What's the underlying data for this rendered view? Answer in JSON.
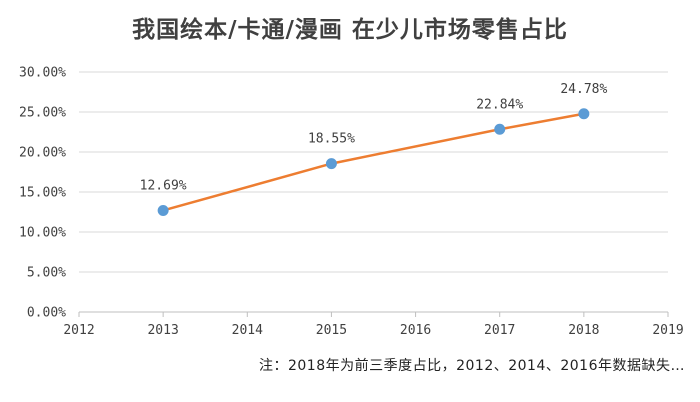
{
  "colors": {
    "line": "#ed7d31",
    "marker": "#5b9bd5",
    "grid": "#d9d9d9",
    "axis": "#bfbfbf",
    "text": "#404040"
  },
  "chart_data": {
    "type": "line",
    "title": "我国绘本/卡通/漫画 在少儿市场零售占比",
    "xlabel": "",
    "ylabel": "",
    "x_ticks": [
      "2012",
      "2013",
      "2014",
      "2015",
      "2016",
      "2017",
      "2018",
      "2019"
    ],
    "y_ticks": [
      "0.00%",
      "5.00%",
      "10.00%",
      "15.00%",
      "20.00%",
      "25.00%",
      "30.00%"
    ],
    "xlim": [
      2012,
      2019
    ],
    "ylim": [
      0,
      30
    ],
    "grid": true,
    "legend": "none",
    "series": [
      {
        "x": [
          2013,
          2015,
          2017,
          2018
        ],
        "values": [
          12.69,
          18.55,
          22.84,
          24.78
        ],
        "labels": [
          "12.69%",
          "18.55%",
          "22.84%",
          "24.78%"
        ]
      }
    ],
    "note": "注：2018年为前三季度占比，2012、2014、2016年数据缺失…"
  }
}
